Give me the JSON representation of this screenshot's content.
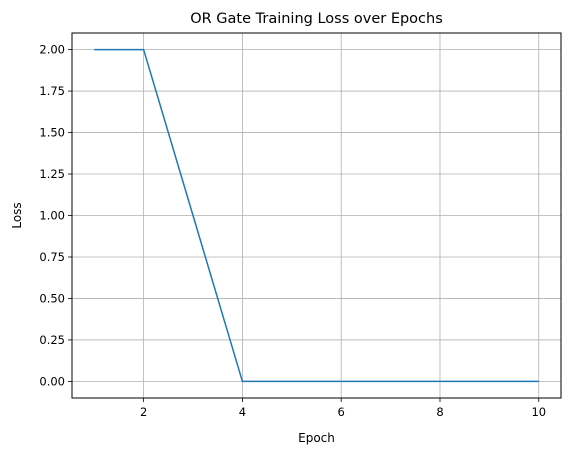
{
  "chart_data": {
    "type": "line",
    "title": "OR Gate Training Loss over Epochs",
    "xlabel": "Epoch",
    "ylabel": "Loss",
    "xlim": [
      0.55,
      10.45
    ],
    "ylim": [
      -0.1,
      2.1
    ],
    "xticks": [
      2,
      4,
      6,
      8,
      10
    ],
    "xtick_labels": [
      "2",
      "4",
      "6",
      "8",
      "10"
    ],
    "yticks": [
      0.0,
      0.25,
      0.5,
      0.75,
      1.0,
      1.25,
      1.5,
      1.75,
      2.0
    ],
    "ytick_labels": [
      "0.00",
      "0.25",
      "0.50",
      "0.75",
      "1.00",
      "1.25",
      "1.50",
      "1.75",
      "2.00"
    ],
    "grid": true,
    "series": [
      {
        "color": "#1f77b4",
        "x": [
          1,
          2,
          3,
          4,
          5,
          6,
          7,
          8,
          9,
          10
        ],
        "values": [
          2,
          2,
          1,
          0,
          0,
          0,
          0,
          0,
          0,
          0
        ]
      }
    ]
  }
}
